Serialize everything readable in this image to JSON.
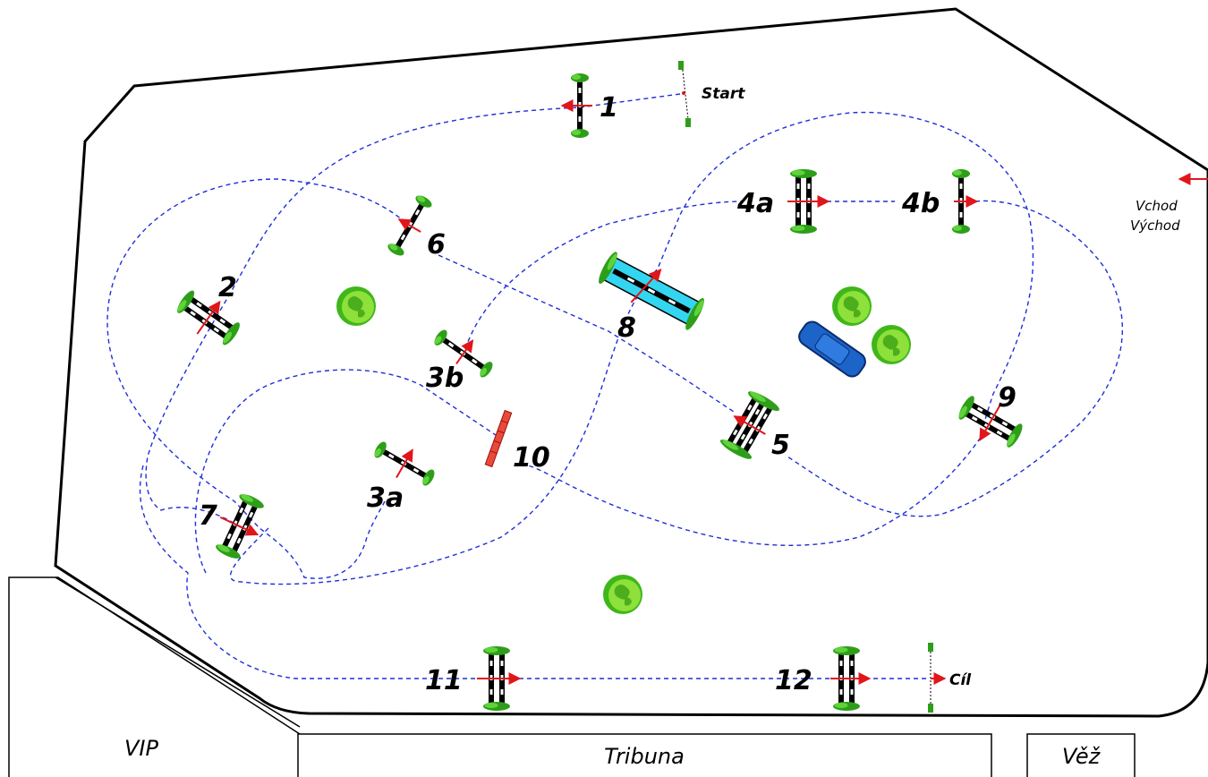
{
  "course": {
    "start_label": "Start",
    "finish_label": "Cíl",
    "entrance_label": "Vchod",
    "exit_label": "Východ"
  },
  "areas": {
    "vip": "VIP",
    "grandstand": "Tribuna",
    "tower": "Věž"
  },
  "obstacles": [
    {
      "id": "1",
      "label": "1",
      "kind": "vertical"
    },
    {
      "id": "2",
      "label": "2",
      "kind": "oxer"
    },
    {
      "id": "3a",
      "label": "3a",
      "kind": "vertical"
    },
    {
      "id": "3b",
      "label": "3b",
      "kind": "vertical"
    },
    {
      "id": "4a",
      "label": "4a",
      "kind": "oxer"
    },
    {
      "id": "4b",
      "label": "4b",
      "kind": "vertical"
    },
    {
      "id": "5",
      "label": "5",
      "kind": "triple-bar"
    },
    {
      "id": "6",
      "label": "6",
      "kind": "vertical"
    },
    {
      "id": "7",
      "label": "7",
      "kind": "oxer"
    },
    {
      "id": "8",
      "label": "8",
      "kind": "water"
    },
    {
      "id": "9",
      "label": "9",
      "kind": "oxer"
    },
    {
      "id": "10",
      "label": "10",
      "kind": "wall"
    },
    {
      "id": "11",
      "label": "11",
      "kind": "oxer"
    },
    {
      "id": "12",
      "label": "12",
      "kind": "oxer"
    }
  ],
  "colors": {
    "route": "#1f2fd6",
    "arrow": "#e0161b",
    "tree": "#3fb71a",
    "water": "#33d6f0",
    "car": "#1c64c8",
    "wall": "#e84a3a"
  }
}
